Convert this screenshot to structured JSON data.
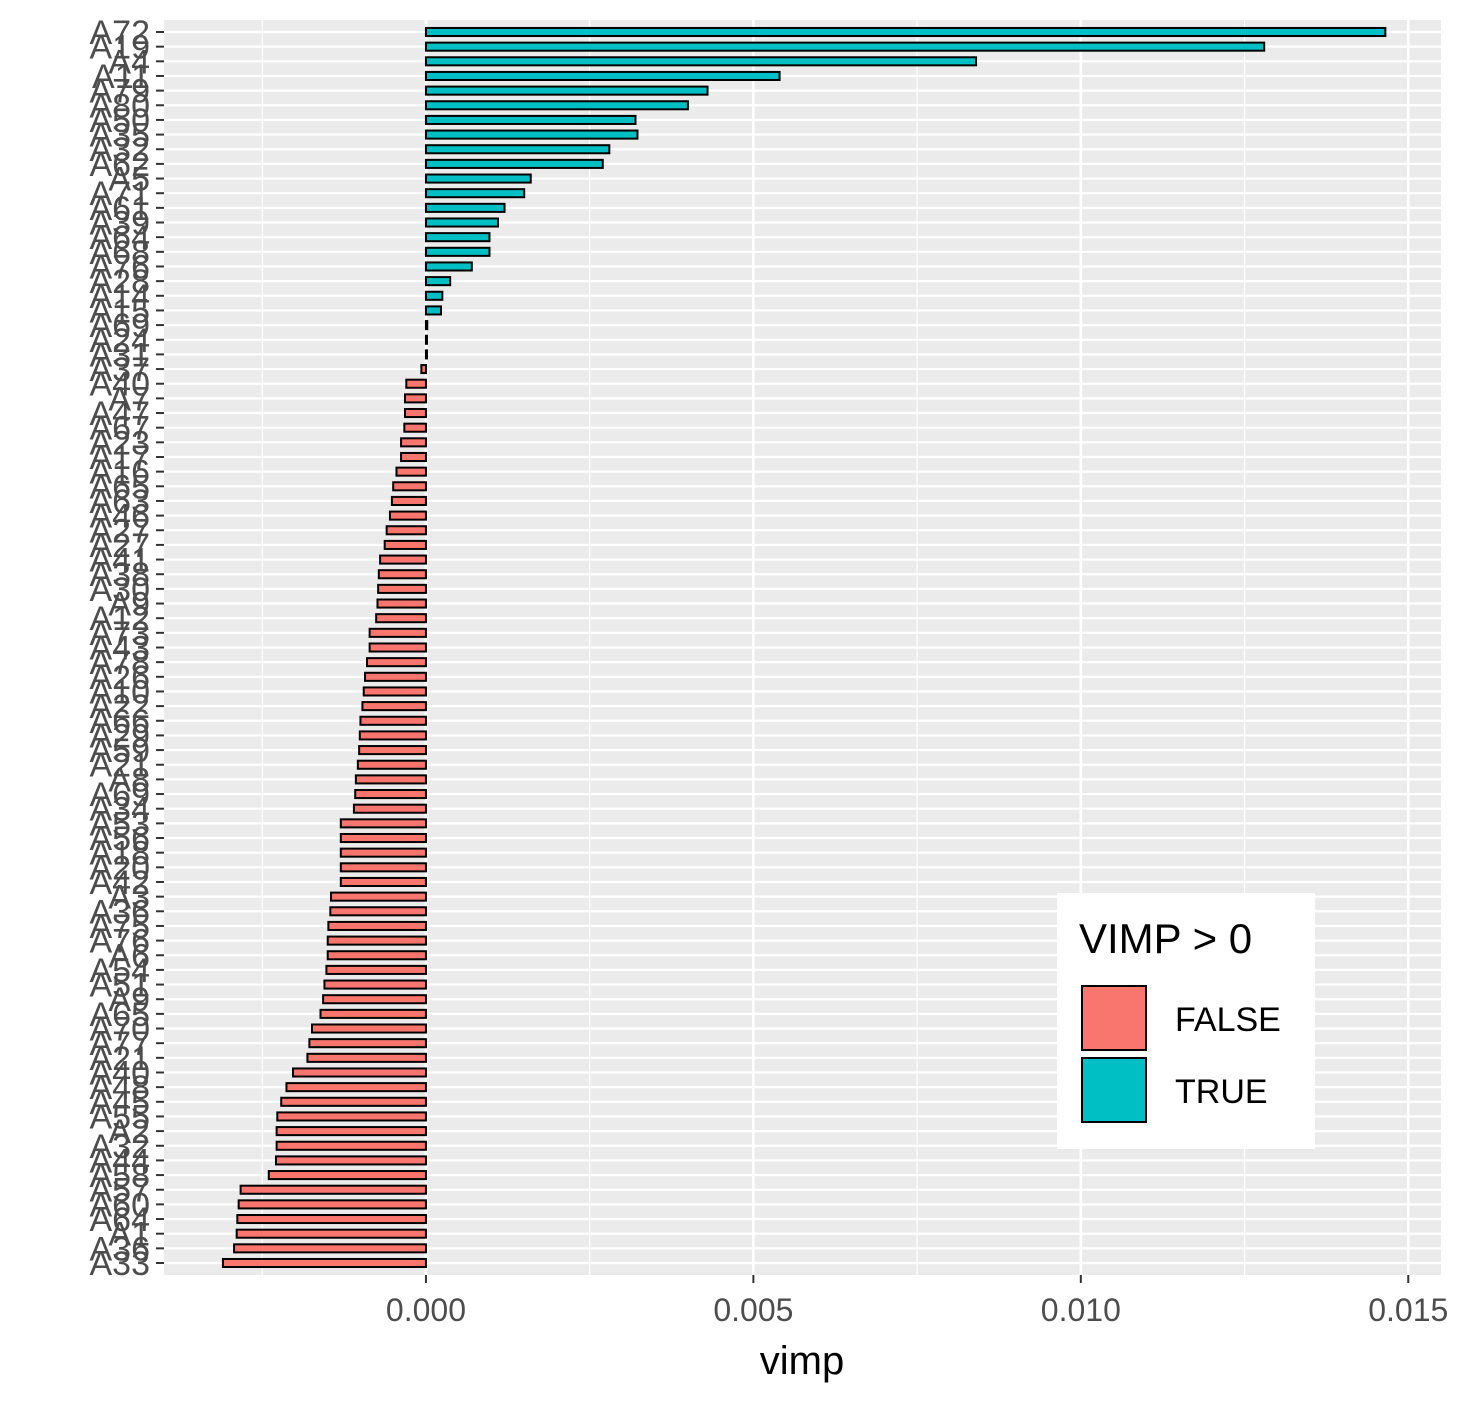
{
  "chart_data": {
    "type": "bar",
    "orientation": "horizontal",
    "xlabel": "vimp",
    "ylabel": "",
    "xlim": [
      -0.004,
      0.0155
    ],
    "x_ticks": [
      {
        "value": 0.0,
        "label": "0.000"
      },
      {
        "value": 0.005,
        "label": "0.005"
      },
      {
        "value": 0.01,
        "label": "0.010"
      },
      {
        "value": 0.015,
        "label": "0.015"
      }
    ],
    "grid": true,
    "legend": {
      "title": "VIMP > 0",
      "placement": "bottom-right-inside",
      "entries": [
        {
          "label": "FALSE",
          "color": "#F8766D"
        },
        {
          "label": "TRUE",
          "color": "#00BFC4"
        }
      ]
    },
    "categories": [
      "A72",
      "A19",
      "A4",
      "A11",
      "A79",
      "A80",
      "A50",
      "A35",
      "A32",
      "A62",
      "A5",
      "A71",
      "A61",
      "A39",
      "A64",
      "A68",
      "A76",
      "A28",
      "A14",
      "A15",
      "A69",
      "A24",
      "A31",
      "A37",
      "A40",
      "A7",
      "A47",
      "A67",
      "A23",
      "A17",
      "A16",
      "A65",
      "A63",
      "A46",
      "A27",
      "A27",
      "A41",
      "A38",
      "A30",
      "A9",
      "A12",
      "A73",
      "A43",
      "A78",
      "A26",
      "A10",
      "A22",
      "A66",
      "A29",
      "A59",
      "A21",
      "A8",
      "A69",
      "A34",
      "A53",
      "A56",
      "A18",
      "A20",
      "A42",
      "A3",
      "A36",
      "A75",
      "A76",
      "A6",
      "A54",
      "A51",
      "A9",
      "A65",
      "A70",
      "A77",
      "A21",
      "A40",
      "A48",
      "A45",
      "A55",
      "A2",
      "A32",
      "A44",
      "A58",
      "A57",
      "A60",
      "A64",
      "A1",
      "A36",
      "A33"
    ],
    "values": [
      0.01465,
      0.0128,
      0.0084,
      0.0054,
      0.0043,
      0.004,
      0.0032,
      0.00323,
      0.0028,
      0.0027,
      0.0016,
      0.0015,
      0.0012,
      0.0011,
      0.00097,
      0.00097,
      0.0007,
      0.00037,
      0.00025,
      0.00023,
      2e-05,
      0.0,
      0.0,
      -7e-05,
      -0.0003,
      -0.00032,
      -0.00032,
      -0.00033,
      -0.00038,
      -0.00038,
      -0.00045,
      -0.0005,
      -0.00052,
      -0.00055,
      -0.0006,
      -0.00063,
      -0.0007,
      -0.00072,
      -0.00073,
      -0.00074,
      -0.00076,
      -0.00086,
      -0.00086,
      -0.0009,
      -0.00093,
      -0.00095,
      -0.00097,
      -0.001,
      -0.00101,
      -0.00102,
      -0.00104,
      -0.00107,
      -0.00108,
      -0.0011,
      -0.0013,
      -0.0013,
      -0.0013,
      -0.0013,
      -0.0013,
      -0.00145,
      -0.00146,
      -0.00149,
      -0.0015,
      -0.0015,
      -0.00152,
      -0.00155,
      -0.00157,
      -0.00161,
      -0.00174,
      -0.00178,
      -0.00181,
      -0.00203,
      -0.00213,
      -0.00221,
      -0.00227,
      -0.00228,
      -0.00228,
      -0.00229,
      -0.0024,
      -0.00283,
      -0.00286,
      -0.00288,
      -0.00289,
      -0.00293,
      -0.0031
    ]
  }
}
